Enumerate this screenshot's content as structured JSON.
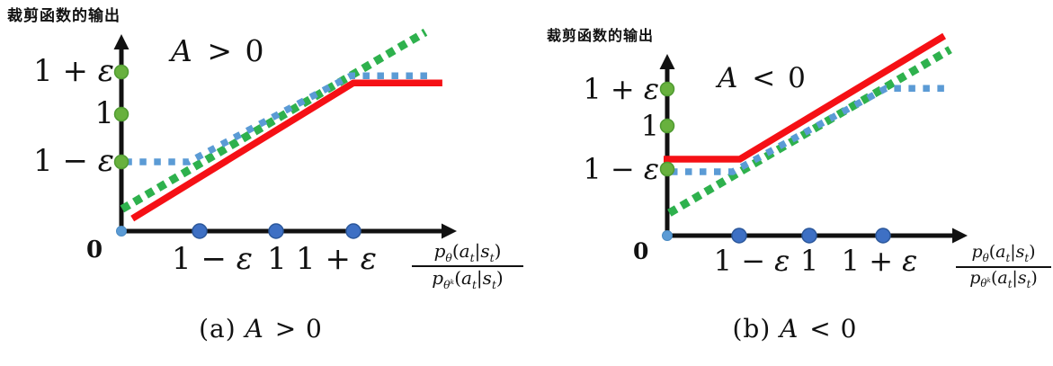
{
  "figure": {
    "background": "#ffffff"
  },
  "colors": {
    "axis": "#111111",
    "red_solid": "#f51015",
    "green_dotted": "#2eb14d",
    "blue_dotted": "#5b9bd5",
    "green_marker_fill": "#68b13e",
    "green_marker_edge": "#4f9a31",
    "blue_marker_fill": "#3e70c4",
    "blue_marker_edge": "#2b579a",
    "origin_marker_fill": "#5b9bd5",
    "origin_marker_edge": "#4a8ac2"
  },
  "chart_data": [
    {
      "type": "line",
      "title_html": "<i>A</i> &gt; 0",
      "caption_html": "(a) <i>A</i> &gt; 0",
      "ylabel": "裁剪函数的输出",
      "origin_label": "0",
      "x_tick_labels_html": [
        "1 − <i>ε</i>",
        "1",
        "1 + <i>ε</i>"
      ],
      "y_tick_labels_html": [
        "1 + <i>ε</i>",
        "1",
        "1 − <i>ε</i>"
      ],
      "xlabel_fraction": {
        "numerator_html": "<i>p</i><sub><i>θ</i></sub>(<i>a</i><sub><i>t</i></sub>|<i>s</i><sub><i>t</i></sub>)",
        "denominator_html": "<i>p</i><sub><i>θ</i><sup><i>k</i></sup></sub>(<i>a</i><sub><i>t</i></sub>|<i>s</i><sub><i>t</i></sub>)"
      },
      "units": "x and y in tick units: 1 = 1−ε, 2 = 1, 3 = 1+ε",
      "grid": false,
      "legend": false,
      "x_axis_dots_at": [
        1,
        2,
        3
      ],
      "y_axis_dots_at": [
        1,
        2,
        3
      ],
      "origin_dot": true,
      "series": [
        {
          "id": "unclipped-ratio-green-dotted",
          "style": "dotted",
          "color_key": "green_dotted",
          "points": [
            [
              0.01,
              0.32
            ],
            [
              3.93,
              3.94
            ]
          ]
        },
        {
          "id": "clip-bounds-blue-dotted",
          "style": "dotted",
          "color_key": "blue_dotted",
          "points": [
            [
              0.05,
              1.0
            ],
            [
              0.86,
              1.0
            ],
            [
              2.97,
              2.91
            ],
            [
              3.98,
              2.91
            ]
          ]
        },
        {
          "id": "clipped-objective-red-solid",
          "style": "solid",
          "color_key": "red_solid",
          "points": [
            [
              0.14,
              0.18
            ],
            [
              3.0,
              2.74
            ],
            [
              4.15,
              2.74
            ]
          ]
        }
      ]
    },
    {
      "type": "line",
      "title_html": "<i>A</i> &lt; 0",
      "caption_html": "(b) <i>A</i> &lt; 0",
      "ylabel": "裁剪函数的输出",
      "origin_label": "0",
      "x_tick_labels_html": [
        "1 − <i>ε</i>",
        "1",
        "1 + <i>ε</i>"
      ],
      "y_tick_labels_html": [
        "1 + <i>ε</i>",
        "1",
        "1 − <i>ε</i>"
      ],
      "xlabel_fraction": {
        "numerator_html": "<i>p</i><sub><i>θ</i></sub>(<i>a</i><sub><i>t</i></sub>|<i>s</i><sub><i>t</i></sub>)",
        "denominator_html": "<i>p</i><sub><i>θ</i><sup><i>k</i></sup></sub>(<i>a</i><sub><i>t</i></sub>|<i>s</i><sub><i>t</i></sub>)"
      },
      "units": "x and y in tick units: 1 = 1−ε, 2 = 1, 3 = 1+ε",
      "grid": false,
      "legend": false,
      "x_axis_dots_at": [
        1,
        2,
        3
      ],
      "y_axis_dots_at": [
        1,
        2,
        3
      ],
      "origin_dot": true,
      "series": [
        {
          "id": "unclipped-ratio-green-dotted",
          "style": "dotted",
          "color_key": "green_dotted",
          "points": [
            [
              0.03,
              0.34
            ],
            [
              3.91,
              4.07
            ]
          ]
        },
        {
          "id": "clip-bounds-blue-dotted",
          "style": "dotted",
          "color_key": "blue_dotted",
          "points": [
            [
              0.05,
              0.96
            ],
            [
              0.91,
              0.96
            ],
            [
              3.04,
              3.02
            ],
            [
              3.89,
              3.02
            ]
          ]
        },
        {
          "id": "clipped-objective-red-solid",
          "style": "solid",
          "color_key": "red_solid",
          "points": [
            [
              -0.05,
              1.23
            ],
            [
              1.01,
              1.23
            ],
            [
              3.83,
              4.44
            ]
          ]
        }
      ]
    }
  ]
}
